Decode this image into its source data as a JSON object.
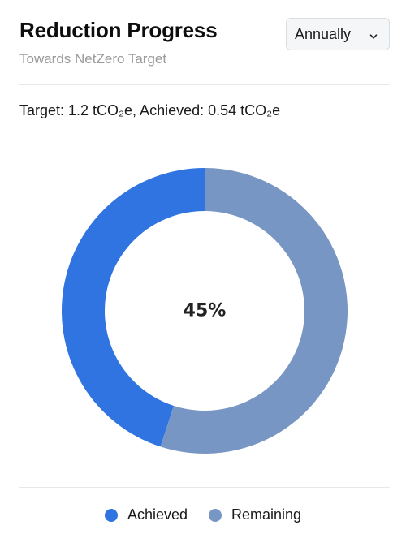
{
  "header": {
    "title": "Reduction Progress",
    "subtitle": "Towards NetZero Target",
    "period_select": {
      "value": "Annually",
      "icon": "chevron-down-icon"
    }
  },
  "summary": {
    "text": "Target: 1.2 tCO₂e, Achieved: 0.54 tCO₂e"
  },
  "chart_data": {
    "type": "pie",
    "subtype": "donut",
    "center_label": "45%",
    "slices": [
      {
        "name": "Achieved",
        "value": 45,
        "color": "#2f74e0"
      },
      {
        "name": "Remaining",
        "value": 55,
        "color": "#7896c3"
      }
    ],
    "legend_position": "bottom-center"
  },
  "legend": {
    "items": [
      {
        "label": "Achieved",
        "color": "#2f74e0"
      },
      {
        "label": "Remaining",
        "color": "#7896c3"
      }
    ]
  }
}
